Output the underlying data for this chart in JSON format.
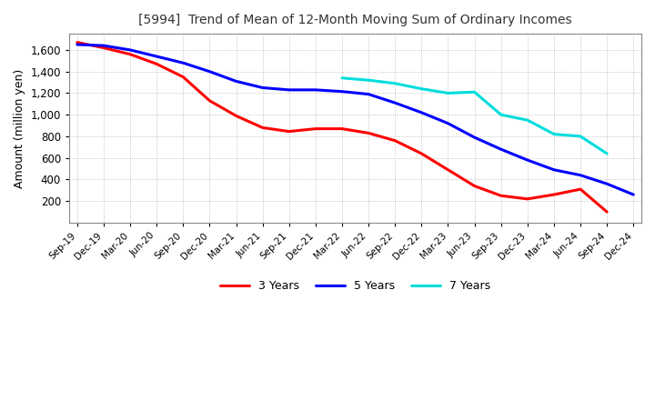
{
  "title": "[5994]  Trend of Mean of 12-Month Moving Sum of Ordinary Incomes",
  "ylabel": "Amount (million yen)",
  "background_color": "#ffffff",
  "grid_color": "#aaaaaa",
  "x_labels": [
    "Sep-19",
    "Dec-19",
    "Mar-20",
    "Jun-20",
    "Sep-20",
    "Dec-20",
    "Mar-21",
    "Jun-21",
    "Sep-21",
    "Dec-21",
    "Mar-22",
    "Jun-22",
    "Sep-22",
    "Dec-22",
    "Mar-23",
    "Jun-23",
    "Sep-23",
    "Dec-23",
    "Mar-24",
    "Jun-24",
    "Sep-24",
    "Dec-24"
  ],
  "ylim": [
    0,
    1750
  ],
  "yticks": [
    200,
    400,
    600,
    800,
    1000,
    1200,
    1400,
    1600
  ],
  "series": {
    "3 Years": {
      "color": "#ff0000",
      "data": [
        1670,
        1620,
        1560,
        1470,
        1350,
        1130,
        990,
        880,
        845,
        870,
        870,
        830,
        760,
        640,
        490,
        340,
        250,
        220,
        260,
        310,
        100,
        null
      ]
    },
    "5 Years": {
      "color": "#0000ff",
      "data": [
        1650,
        1640,
        1600,
        1540,
        1480,
        1400,
        1310,
        1250,
        1230,
        1230,
        1215,
        1190,
        1110,
        1020,
        920,
        790,
        680,
        580,
        490,
        440,
        360,
        260
      ]
    },
    "7 Years": {
      "color": "#00dddd",
      "data": [
        null,
        null,
        null,
        null,
        null,
        null,
        null,
        null,
        null,
        null,
        1340,
        1320,
        1290,
        1240,
        1200,
        1210,
        1000,
        950,
        820,
        800,
        640,
        null
      ]
    },
    "10 Years": {
      "color": "#008000",
      "data": [
        null,
        null,
        null,
        null,
        null,
        null,
        null,
        null,
        null,
        null,
        null,
        null,
        null,
        null,
        null,
        null,
        null,
        null,
        null,
        null,
        null,
        null
      ]
    }
  },
  "legend_loc": "lower center",
  "legend_ncol": 4
}
